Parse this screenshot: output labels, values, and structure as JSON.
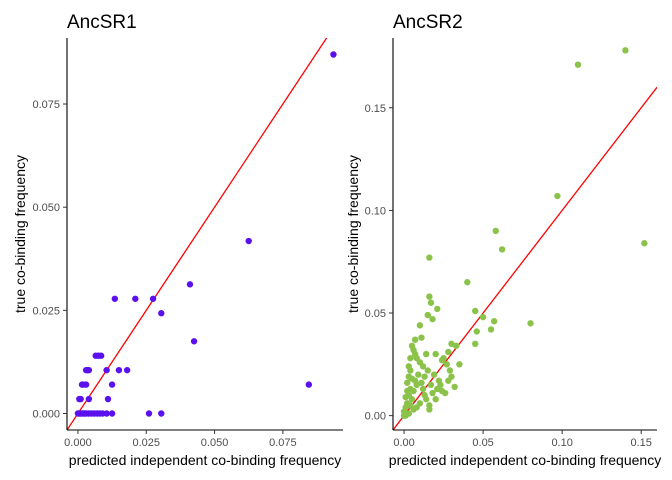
{
  "chart_data": [
    {
      "type": "scatter",
      "title": "AncSR1",
      "xlabel": "predicted independent co-binding frequency",
      "ylabel": "true co-binding frequency",
      "xlim": [
        -0.004,
        0.097
      ],
      "ylim": [
        -0.004,
        0.091
      ],
      "xticks": [
        0.0,
        0.025,
        0.05,
        0.075
      ],
      "xtick_labels": [
        "0.000",
        "0.025",
        "0.050",
        "0.075"
      ],
      "yticks": [
        0.0,
        0.025,
        0.05,
        0.075
      ],
      "ytick_labels": [
        "0.000",
        "0.025",
        "0.050",
        "0.075"
      ],
      "point_color": "#5b10ee",
      "reference_line": {
        "slope": 1,
        "intercept": 0,
        "color": "#ff0000"
      },
      "points": [
        [
          0.0935,
          0.087
        ],
        [
          0.0625,
          0.0418
        ],
        [
          0.0845,
          0.007
        ],
        [
          0.041,
          0.0313
        ],
        [
          0.0425,
          0.0175
        ],
        [
          0.0305,
          0.0243
        ],
        [
          0.0275,
          0.0278
        ],
        [
          0.021,
          0.0278
        ],
        [
          0.0135,
          0.0278
        ],
        [
          0.0305,
          0.0
        ],
        [
          0.026,
          0.0
        ],
        [
          0.015,
          0.0105
        ],
        [
          0.018,
          0.0105
        ],
        [
          0.0105,
          0.0105
        ],
        [
          0.0125,
          0.007
        ],
        [
          0.011,
          0.0035
        ],
        [
          0.0085,
          0.014
        ],
        [
          0.0075,
          0.014
        ],
        [
          0.0065,
          0.014
        ],
        [
          0.004,
          0.0105
        ],
        [
          0.003,
          0.0105
        ],
        [
          0.0035,
          0.0105
        ],
        [
          0.002,
          0.007
        ],
        [
          0.003,
          0.007
        ],
        [
          0.0015,
          0.007
        ],
        [
          0.0005,
          0.0035
        ],
        [
          0.001,
          0.0035
        ],
        [
          0.004,
          0.0035
        ],
        [
          0.0,
          0.0
        ],
        [
          0.0005,
          0.0
        ],
        [
          0.001,
          0.0
        ],
        [
          0.0015,
          0.0
        ],
        [
          0.002,
          0.0
        ],
        [
          0.0025,
          0.0
        ],
        [
          0.003,
          0.0
        ],
        [
          0.004,
          0.0
        ],
        [
          0.005,
          0.0
        ],
        [
          0.006,
          0.0
        ],
        [
          0.007,
          0.0
        ],
        [
          0.008,
          0.0
        ],
        [
          0.009,
          0.0
        ],
        [
          0.0105,
          0.0
        ],
        [
          0.0125,
          0.0
        ]
      ]
    },
    {
      "type": "scatter",
      "title": "AncSR2",
      "xlabel": "predicted independent co-binding frequency",
      "ylabel": "true co-binding frequency",
      "xlim": [
        -0.007,
        0.16
      ],
      "ylim": [
        -0.007,
        0.184
      ],
      "xticks": [
        0.0,
        0.05,
        0.1,
        0.15
      ],
      "xtick_labels": [
        "0.00",
        "0.05",
        "0.10",
        "0.15"
      ],
      "yticks": [
        0.0,
        0.05,
        0.1,
        0.15
      ],
      "ytick_labels": [
        "0.00",
        "0.05",
        "0.10",
        "0.15"
      ],
      "point_color": "#8bc34a",
      "reference_line": {
        "slope": 1,
        "intercept": 0,
        "color": "#ff0000"
      },
      "points": [
        [
          0.14,
          0.178
        ],
        [
          0.11,
          0.171
        ],
        [
          0.097,
          0.107
        ],
        [
          0.152,
          0.084
        ],
        [
          0.058,
          0.09
        ],
        [
          0.062,
          0.081
        ],
        [
          0.016,
          0.077
        ],
        [
          0.04,
          0.065
        ],
        [
          0.08,
          0.045
        ],
        [
          0.057,
          0.046
        ],
        [
          0.045,
          0.051
        ],
        [
          0.05,
          0.048
        ],
        [
          0.055,
          0.042
        ],
        [
          0.046,
          0.041
        ],
        [
          0.045,
          0.035
        ],
        [
          0.016,
          0.058
        ],
        [
          0.017,
          0.055
        ],
        [
          0.021,
          0.052
        ],
        [
          0.015,
          0.049
        ],
        [
          0.018,
          0.047
        ],
        [
          0.01,
          0.044
        ],
        [
          0.03,
          0.035
        ],
        [
          0.033,
          0.034
        ],
        [
          0.028,
          0.031
        ],
        [
          0.011,
          0.038
        ],
        [
          0.007,
          0.037
        ],
        [
          0.014,
          0.03
        ],
        [
          0.02,
          0.03
        ],
        [
          0.025,
          0.028
        ],
        [
          0.027,
          0.025
        ],
        [
          0.024,
          0.027
        ],
        [
          0.029,
          0.022
        ],
        [
          0.03,
          0.019
        ],
        [
          0.028,
          0.017
        ],
        [
          0.023,
          0.015
        ],
        [
          0.021,
          0.013
        ],
        [
          0.026,
          0.011
        ],
        [
          0.016,
          0.003
        ],
        [
          0.013,
          0.019
        ],
        [
          0.015,
          0.022
        ],
        [
          0.012,
          0.024
        ],
        [
          0.01,
          0.026
        ],
        [
          0.008,
          0.028
        ],
        [
          0.007,
          0.03
        ],
        [
          0.006,
          0.032
        ],
        [
          0.005,
          0.034
        ],
        [
          0.004,
          0.022
        ],
        [
          0.003,
          0.019
        ],
        [
          0.002,
          0.016
        ],
        [
          0.004,
          0.013
        ],
        [
          0.003,
          0.01
        ],
        [
          0.005,
          0.008
        ],
        [
          0.002,
          0.006
        ],
        [
          0.001,
          0.004
        ],
        [
          0.0,
          0.002
        ],
        [
          0.001,
          0.0
        ],
        [
          0.0,
          0.0
        ],
        [
          0.003,
          0.001
        ],
        [
          0.006,
          0.012
        ],
        [
          0.008,
          0.015
        ],
        [
          0.007,
          0.017
        ],
        [
          0.009,
          0.02
        ],
        [
          0.011,
          0.016
        ],
        [
          0.012,
          0.013
        ],
        [
          0.013,
          0.01
        ],
        [
          0.014,
          0.008
        ],
        [
          0.01,
          0.006
        ],
        [
          0.008,
          0.004
        ],
        [
          0.006,
          0.003
        ],
        [
          0.004,
          0.005
        ],
        [
          0.019,
          0.02
        ],
        [
          0.022,
          0.017
        ],
        [
          0.024,
          0.012
        ],
        [
          0.018,
          0.011
        ],
        [
          0.017,
          0.015
        ],
        [
          0.02,
          0.008
        ],
        [
          0.016,
          0.005
        ],
        [
          0.035,
          0.025
        ],
        [
          0.032,
          0.014
        ],
        [
          0.002,
          0.012
        ],
        [
          0.001,
          0.009
        ],
        [
          0.005,
          0.018
        ],
        [
          0.003,
          0.024
        ],
        [
          0.004,
          0.028
        ]
      ]
    }
  ]
}
